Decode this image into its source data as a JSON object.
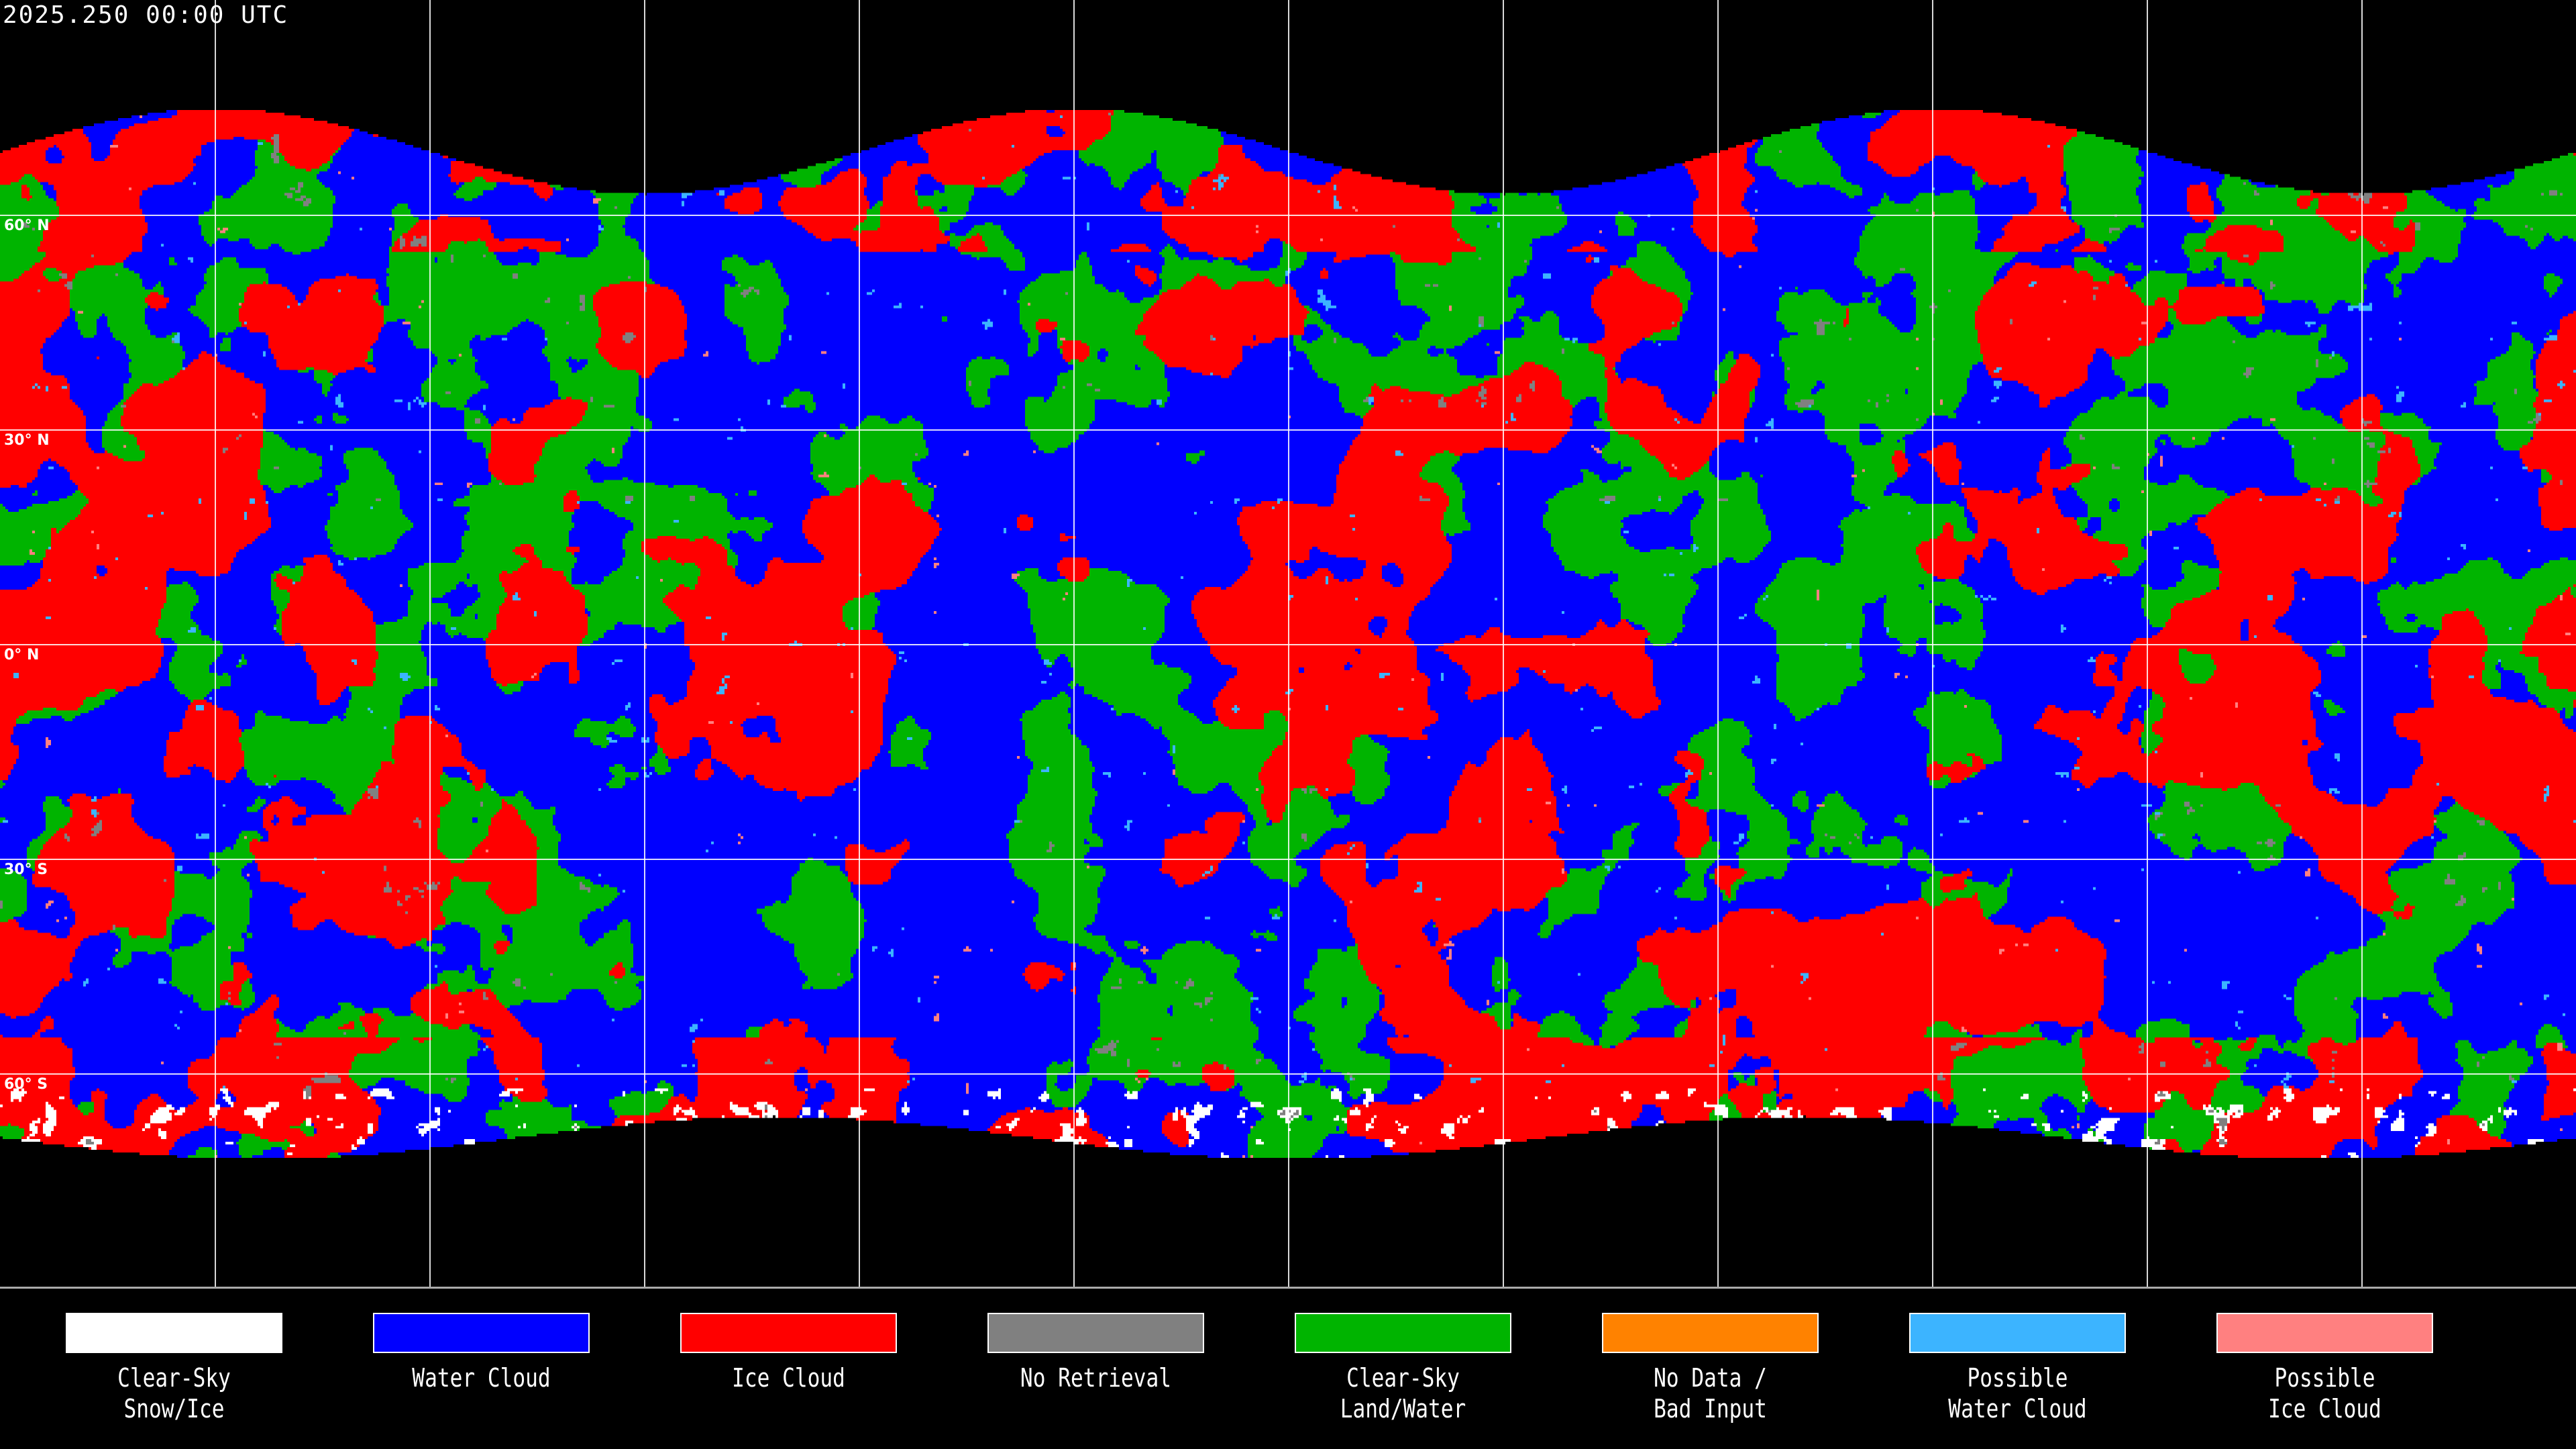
{
  "title": "2025.250 00:00 UTC",
  "map": {
    "projection": "equirectangular",
    "latitude_labels": [
      "60° N",
      "30° N",
      "0° N",
      "30° S",
      "60° S"
    ],
    "latitude_values": [
      60,
      30,
      0,
      -30,
      -60
    ],
    "longitude_grid_spacing_deg": 30,
    "grid_color": "#ffffff",
    "coastline_color": "#ffffff"
  },
  "legend": [
    {
      "label": "Clear-Sky\nSnow/Ice",
      "color": "#ffffff"
    },
    {
      "label": "Water Cloud",
      "color": "#0000ff"
    },
    {
      "label": "Ice Cloud",
      "color": "#ff0000"
    },
    {
      "label": "No Retrieval",
      "color": "#808080"
    },
    {
      "label": "Clear-Sky\nLand/Water",
      "color": "#00b400"
    },
    {
      "label": "No Data /\nBad Input",
      "color": "#ff8200"
    },
    {
      "label": "Possible\nWater Cloud",
      "color": "#3cb4ff"
    },
    {
      "label": "Possible\nIce Cloud",
      "color": "#ff8080"
    }
  ]
}
